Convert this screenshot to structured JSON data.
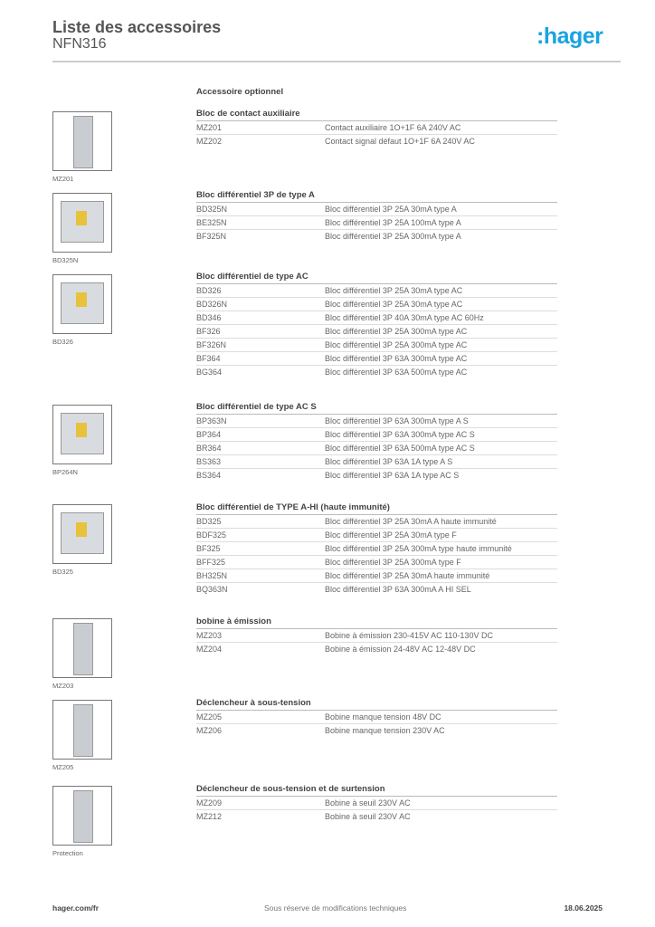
{
  "header": {
    "title": "Liste des accessoires",
    "subtitle": "NFN316",
    "logo": ":hager"
  },
  "optional_label": "Accessoire optionnel",
  "sections": [
    {
      "title": "Bloc de contact auxiliaire",
      "image_caption": "MZ201",
      "rows": [
        [
          "MZ201",
          "Contact auxiliaire 1O+1F 6A 240V AC"
        ],
        [
          "MZ202",
          "Contact signal défaut 1O+1F 6A 240V AC"
        ]
      ]
    },
    {
      "title": "Bloc différentiel 3P de type A",
      "image_caption": "BD325N",
      "rows": [
        [
          "BD325N",
          "Bloc différentiel 3P 25A 30mA type A"
        ],
        [
          "BE325N",
          "Bloc différentiel 3P 25A 100mA type A"
        ],
        [
          "BF325N",
          "Bloc différentiel 3P 25A 300mA type A"
        ]
      ]
    },
    {
      "title": "Bloc différentiel de type AC",
      "image_caption": "BD326",
      "rows": [
        [
          "BD326",
          "Bloc différentiel 3P 25A 30mA type AC"
        ],
        [
          "BD326N",
          "Bloc différentiel 3P 25A 30mA type AC"
        ],
        [
          "BD346",
          "Bloc différentiel 3P 40A 30mA type AC 60Hz"
        ],
        [
          "BF326",
          "Bloc différentiel 3P 25A 300mA type AC"
        ],
        [
          "BF326N",
          "Bloc différentiel 3P 25A 300mA type AC"
        ],
        [
          "BF364",
          "Bloc différentiel 3P 63A 300mA type AC"
        ],
        [
          "BG364",
          "Bloc différentiel 3P 63A 500mA type AC"
        ]
      ]
    },
    {
      "title": "Bloc différentiel de type AC S",
      "image_caption": "BP264N",
      "rows": [
        [
          "BP363N",
          "Bloc différentiel 3P 63A 300mA type A S"
        ],
        [
          "BP364",
          "Bloc différentiel 3P 63A 300mA type AC S"
        ],
        [
          "BR364",
          "Bloc différentiel 3P 63A 500mA type AC S"
        ],
        [
          "BS363",
          "Bloc différentiel 3P 63A 1A type A S"
        ],
        [
          "BS364",
          "Bloc différentiel 3P 63A 1A type AC S"
        ]
      ]
    },
    {
      "title": "Bloc différentiel de TYPE A-HI (haute immunité)",
      "image_caption": "BD325",
      "rows": [
        [
          "BD325",
          "Bloc différentiel 3P 25A 30mA A haute immunité"
        ],
        [
          "BDF325",
          "Bloc différentiel 3P 25A 30mA type F"
        ],
        [
          "BF325",
          "Bloc différentiel 3P 25A 300mA type haute immunité"
        ],
        [
          "BFF325",
          "Bloc différentiel 3P 25A 300mA type F"
        ],
        [
          "BH325N",
          "Bloc différentiel 3P 25A 30mA haute immunité"
        ],
        [
          "BQ363N",
          "Bloc différentiel 3P 63A 300mA  A HI SEL"
        ]
      ]
    },
    {
      "title": "bobine à émission",
      "image_caption": "MZ203",
      "rows": [
        [
          "MZ203",
          "Bobine à émission 230-415V AC 110-130V DC"
        ],
        [
          "MZ204",
          "Bobine à émission 24-48V AC 12-48V DC"
        ]
      ]
    },
    {
      "title": "Déclencheur à sous-tension",
      "image_caption": "MZ205",
      "rows": [
        [
          "MZ205",
          "Bobine manque tension 48V DC"
        ],
        [
          "MZ206",
          "Bobine manque tension 230V AC"
        ]
      ]
    },
    {
      "title": "Déclencheur de sous-tension et de surtension",
      "image_caption": "Protection",
      "rows": [
        [
          "MZ209",
          "Bobine à seuil 230V AC"
        ],
        [
          "MZ212",
          "Bobine à seuil 230V AC"
        ]
      ]
    }
  ],
  "footer": {
    "website": "hager.com/fr",
    "notice": "Sous réserve de modifications techniques",
    "date": "18.06.2025"
  }
}
